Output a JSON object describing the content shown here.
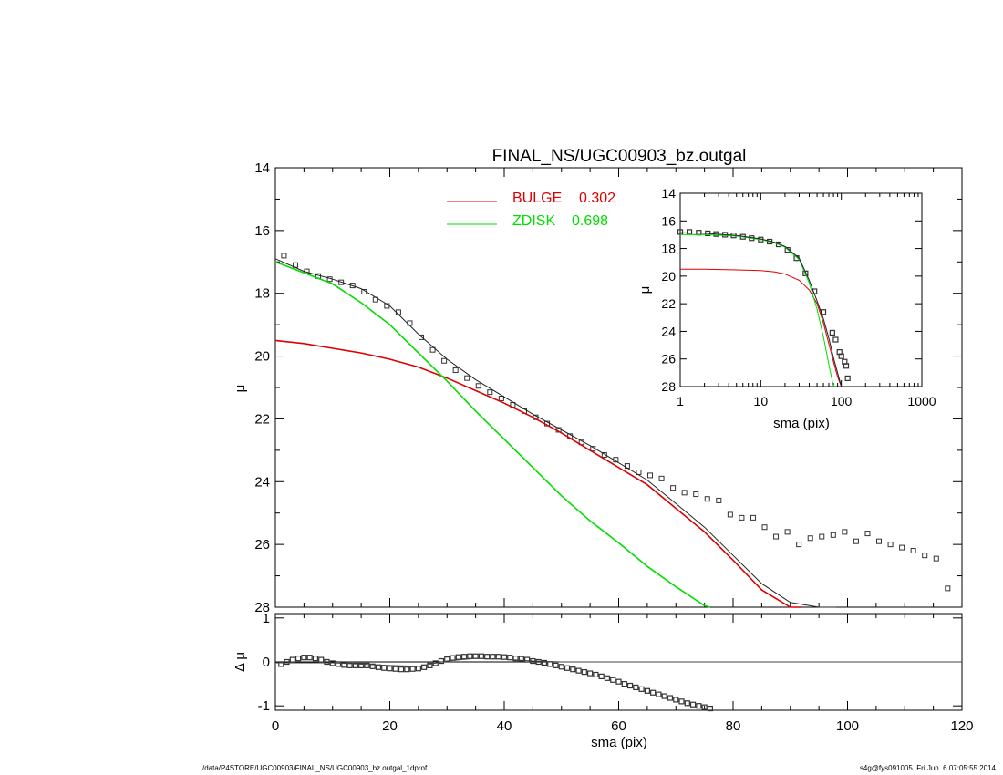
{
  "chart_data": [
    {
      "type": "scatter",
      "title": "FINAL_NS/UGC00903_bz.outgal",
      "ylabel": "μ",
      "xlim": [
        0,
        120
      ],
      "ylim": [
        28,
        14
      ],
      "y_inverted": true,
      "yticks": [
        "14",
        "16",
        "18",
        "20",
        "22",
        "24",
        "26",
        "28"
      ],
      "legend": [
        {
          "name": "BULGE",
          "value": "0.302",
          "color": "#dd0000"
        },
        {
          "name": "ZDISK",
          "value": "0.698",
          "color": "#00dd00"
        }
      ],
      "series": [
        {
          "name": "data",
          "kind": "squares",
          "color": "#333333",
          "x": [
            1.5,
            3.5,
            5.5,
            7.5,
            9.5,
            11.5,
            13.5,
            15.5,
            17.5,
            19.5,
            21.5,
            23.5,
            25.5,
            27.5,
            29.5,
            31.5,
            33.5,
            35.5,
            37.5,
            39.5,
            41.5,
            43.5,
            45.5,
            47.5,
            49.5,
            51.5,
            53.5,
            55.5,
            57.5,
            59.5,
            61.5,
            63.5,
            65.5,
            67.5,
            69.5,
            71.5,
            73.5,
            75.5,
            77.5,
            79.5,
            81.5,
            83.5,
            85.5,
            87.5,
            89.5,
            91.5,
            93.5,
            95.5,
            97.5,
            99.5,
            101.5,
            103.5,
            105.5,
            107.5,
            109.5,
            111.5,
            113.5,
            115.5,
            117.5
          ],
          "y": [
            16.8,
            17.1,
            17.3,
            17.45,
            17.55,
            17.65,
            17.75,
            17.95,
            18.2,
            18.4,
            18.6,
            18.95,
            19.4,
            19.8,
            20.15,
            20.45,
            20.7,
            20.95,
            21.15,
            21.35,
            21.55,
            21.75,
            21.95,
            22.15,
            22.35,
            22.55,
            22.75,
            22.95,
            23.15,
            23.3,
            23.5,
            23.7,
            23.8,
            23.9,
            24.2,
            24.35,
            24.4,
            24.55,
            24.6,
            25.05,
            25.15,
            25.15,
            25.45,
            25.75,
            25.6,
            26.0,
            25.8,
            25.75,
            25.7,
            25.6,
            25.9,
            25.65,
            25.9,
            26.0,
            26.1,
            26.2,
            26.35,
            26.45,
            27.4
          ]
        },
        {
          "name": "BULGE",
          "kind": "line",
          "color": "#dd0000",
          "x": [
            0,
            5,
            10,
            15,
            20,
            25,
            30,
            35,
            40,
            45,
            50,
            55,
            60,
            65,
            70,
            75,
            80,
            85,
            90,
            92
          ],
          "y": [
            19.5,
            19.6,
            19.75,
            19.9,
            20.1,
            20.35,
            20.7,
            21.1,
            21.5,
            21.95,
            22.45,
            23.0,
            23.55,
            24.1,
            24.85,
            25.6,
            26.5,
            27.45,
            28.0,
            28.05
          ]
        },
        {
          "name": "ZDISK",
          "kind": "line",
          "color": "#00dd00",
          "x": [
            0,
            5,
            10,
            15,
            20,
            25,
            30,
            35,
            40,
            45,
            50,
            55,
            60,
            65,
            70,
            75,
            76
          ],
          "y": [
            17.0,
            17.35,
            17.7,
            18.3,
            19.0,
            19.9,
            20.8,
            21.75,
            22.65,
            23.55,
            24.45,
            25.25,
            25.95,
            26.7,
            27.35,
            27.95,
            28.0
          ]
        },
        {
          "name": "total",
          "kind": "line",
          "color": "#222222",
          "x": [
            0,
            5,
            10,
            15,
            20,
            25,
            30,
            35,
            40,
            45,
            50,
            55,
            60,
            65,
            70,
            75,
            80,
            85,
            90,
            95,
            98
          ],
          "y": [
            16.9,
            17.3,
            17.55,
            17.85,
            18.4,
            19.3,
            20.1,
            20.75,
            21.3,
            21.85,
            22.35,
            22.85,
            23.4,
            23.95,
            24.7,
            25.45,
            26.35,
            27.25,
            27.85,
            28.0,
            28.0
          ]
        }
      ]
    },
    {
      "type": "scatter",
      "xlabel": "sma (pix)",
      "ylabel": "μ",
      "xscale": "log",
      "xlim": [
        1,
        1000
      ],
      "ylim": [
        28,
        14
      ],
      "xticks": [
        "1",
        "10",
        "100",
        "1000"
      ],
      "yticks": [
        "14",
        "16",
        "18",
        "20",
        "22",
        "24",
        "26",
        "28"
      ],
      "series": [
        {
          "name": "data",
          "kind": "squares",
          "color": "#333333",
          "x": [
            1,
            1.3,
            1.7,
            2.2,
            2.8,
            3.6,
            4.6,
            6,
            7.7,
            10,
            12.9,
            16.7,
            21.5,
            27.8,
            35.9,
            46.4,
            59.9,
            77.4,
            85,
            95,
            100,
            110,
            115,
            120
          ],
          "y": [
            16.8,
            16.8,
            16.85,
            16.9,
            16.95,
            17.0,
            17.05,
            17.15,
            17.25,
            17.35,
            17.5,
            17.7,
            18.1,
            18.7,
            19.8,
            21.1,
            22.6,
            24.1,
            24.6,
            25.5,
            25.8,
            26.2,
            26.5,
            27.4
          ]
        },
        {
          "name": "BULGE",
          "kind": "line",
          "color": "#dd0000",
          "x": [
            1,
            2,
            5,
            10,
            15,
            20,
            30,
            40,
            50,
            60,
            70,
            80,
            90,
            100
          ],
          "y": [
            19.5,
            19.5,
            19.55,
            19.6,
            19.7,
            19.85,
            20.3,
            21.0,
            22.0,
            23.4,
            24.9,
            26.2,
            27.3,
            28.3
          ]
        },
        {
          "name": "ZDISK",
          "kind": "line",
          "color": "#00dd00",
          "x": [
            1,
            2,
            5,
            10,
            15,
            20,
            30,
            40,
            50,
            60,
            70,
            80
          ],
          "y": [
            17.0,
            17.0,
            17.1,
            17.35,
            17.6,
            17.9,
            18.8,
            20.5,
            22.4,
            24.4,
            26.4,
            28.2
          ]
        },
        {
          "name": "total",
          "kind": "line",
          "color": "#222222",
          "x": [
            1,
            2,
            5,
            10,
            15,
            20,
            30,
            40,
            50,
            60,
            70,
            80,
            90,
            100
          ],
          "y": [
            16.85,
            16.9,
            17.05,
            17.3,
            17.55,
            17.85,
            18.7,
            20.3,
            21.8,
            23.1,
            24.5,
            25.9,
            27.0,
            28.0
          ]
        }
      ]
    },
    {
      "type": "scatter",
      "xlabel": "sma (pix)",
      "ylabel": "Δ μ",
      "xlim": [
        0,
        120
      ],
      "ylim": [
        -1.1,
        1.1
      ],
      "xticks": [
        "0",
        "20",
        "40",
        "60",
        "80",
        "100",
        "120"
      ],
      "yticks": [
        "-1",
        "0",
        "1"
      ],
      "reference_line": 0,
      "series": [
        {
          "name": "residual",
          "kind": "squares",
          "color": "#333333",
          "x": [
            1,
            2,
            3,
            4,
            5,
            6,
            7,
            8,
            9,
            10,
            11,
            12,
            13,
            14,
            15,
            16,
            17,
            18,
            19,
            20,
            21,
            22,
            23,
            24,
            25,
            26,
            27,
            28,
            29,
            30,
            31,
            32,
            33,
            34,
            35,
            36,
            37,
            38,
            39,
            40,
            41,
            42,
            43,
            44,
            45,
            46,
            47,
            48,
            49,
            50,
            51,
            52,
            53,
            54,
            55,
            56,
            57,
            58,
            59,
            60,
            61,
            62,
            63,
            64,
            65,
            66,
            67,
            68,
            69,
            70,
            71,
            72,
            73,
            74,
            75,
            76
          ],
          "y": [
            -0.05,
            0.0,
            0.05,
            0.08,
            0.1,
            0.1,
            0.08,
            0.05,
            0.0,
            -0.03,
            -0.05,
            -0.07,
            -0.08,
            -0.08,
            -0.08,
            -0.08,
            -0.1,
            -0.12,
            -0.14,
            -0.15,
            -0.16,
            -0.17,
            -0.17,
            -0.16,
            -0.15,
            -0.12,
            -0.08,
            -0.03,
            0.02,
            0.06,
            0.09,
            0.11,
            0.12,
            0.13,
            0.13,
            0.13,
            0.12,
            0.12,
            0.12,
            0.11,
            0.1,
            0.08,
            0.07,
            0.05,
            0.02,
            0.0,
            -0.02,
            -0.05,
            -0.08,
            -0.11,
            -0.14,
            -0.17,
            -0.2,
            -0.23,
            -0.26,
            -0.29,
            -0.33,
            -0.37,
            -0.41,
            -0.45,
            -0.5,
            -0.54,
            -0.58,
            -0.62,
            -0.66,
            -0.7,
            -0.74,
            -0.78,
            -0.82,
            -0.86,
            -0.9,
            -0.94,
            -0.97,
            -1.0,
            -1.03,
            -1.06
          ]
        },
        {
          "name": "fit",
          "kind": "line",
          "color": "#444444",
          "x": [
            0,
            10,
            20,
            25,
            30,
            35,
            40,
            45,
            50,
            55,
            60,
            120
          ],
          "y": [
            -0.02,
            -0.02,
            -0.08,
            -0.1,
            0.02,
            0.08,
            0.06,
            0.02,
            0.0,
            0.0,
            0.0,
            0.0
          ]
        }
      ]
    }
  ],
  "footer": {
    "left": "/data/P4STORE/UGC00903/FINAL_NS/UGC00903_bz.outgal_1dprof",
    "right": "s4g@fys091005  Fri Jun  6 07:05:55 2014"
  }
}
